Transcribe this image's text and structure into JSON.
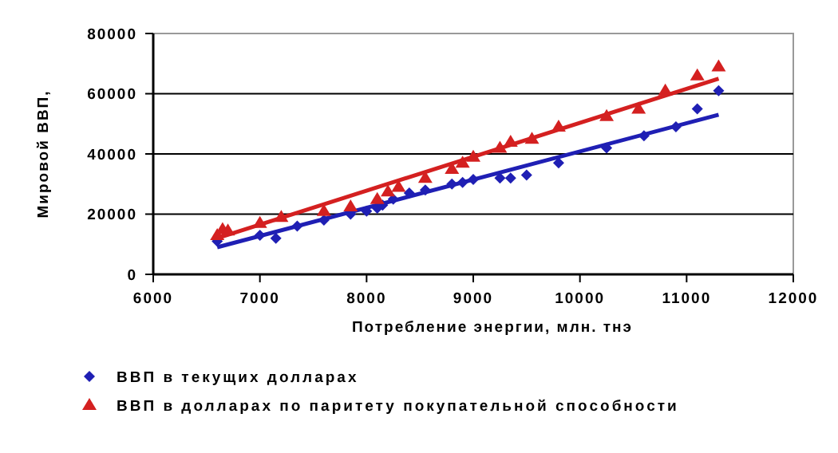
{
  "chart_data": {
    "type": "scatter",
    "xlabel": "Потребление энергии, млн. тнэ",
    "ylabel": "Мировой ВВП,",
    "xlim": [
      6000,
      12000
    ],
    "xticks": [
      6000,
      7000,
      8000,
      9000,
      10000,
      11000,
      12000
    ],
    "ylim": [
      0,
      80000
    ],
    "yticks": [
      0,
      20000,
      40000,
      60000,
      80000
    ],
    "grid": "y",
    "legend": "bottom",
    "series": [
      {
        "name": "ВВП в текущих долларах",
        "color": "#1f1fb4",
        "marker": "diamond",
        "x": [
          6600,
          7000,
          7150,
          7350,
          7600,
          7850,
          8000,
          8100,
          8150,
          8250,
          8400,
          8550,
          8800,
          8900,
          9000,
          9250,
          9350,
          9500,
          9800,
          10250,
          10600,
          10900,
          11100,
          11300
        ],
        "values": [
          11000,
          13000,
          12000,
          16000,
          18000,
          20000,
          21000,
          22000,
          23000,
          25000,
          27000,
          28000,
          30000,
          30500,
          31500,
          32000,
          32000,
          33000,
          37000,
          42000,
          46000,
          49000,
          55000,
          61000
        ]
      },
      {
        "name": "ВВП в долларах по паритету покупательной способности",
        "color": "#d42020",
        "marker": "triangle",
        "x": [
          6600,
          6650,
          6700,
          7000,
          7200,
          7600,
          7850,
          8100,
          8200,
          8300,
          8550,
          8800,
          8900,
          9000,
          9250,
          9350,
          9550,
          9800,
          10250,
          10550,
          10800,
          11100,
          11300
        ],
        "values": [
          13000,
          15000,
          14500,
          17000,
          19000,
          21000,
          22500,
          25000,
          27500,
          29000,
          32000,
          35000,
          37000,
          39000,
          42000,
          44000,
          45000,
          49000,
          52500,
          55000,
          61000,
          66000,
          69000
        ]
      },
      {
        "type": "line",
        "color": "#1f1fb4",
        "marker": "none",
        "x": [
          6600,
          11300
        ],
        "values": [
          9000,
          53000
        ]
      },
      {
        "type": "line",
        "color": "#d42020",
        "marker": "none",
        "x": [
          6600,
          11300
        ],
        "values": [
          12000,
          65000
        ]
      }
    ]
  }
}
